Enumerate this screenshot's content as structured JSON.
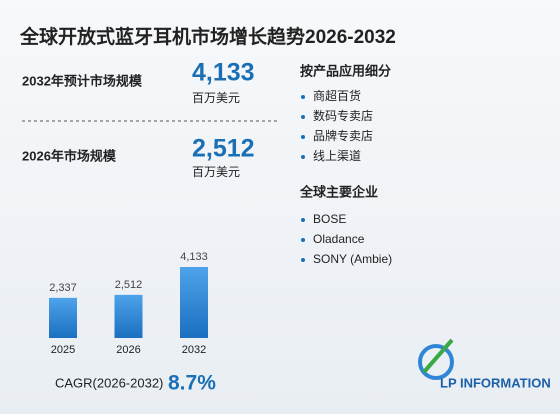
{
  "title": "全球开放式蓝牙耳机市场增长趋势2026-2032",
  "stats": [
    {
      "label": "2032年预计市场规模",
      "value": "4,133",
      "unit": "百万美元"
    },
    {
      "label": "2026年市场规模",
      "value": "2,512",
      "unit": "百万美元"
    }
  ],
  "chart_data": {
    "type": "bar",
    "categories": [
      "2025",
      "2026",
      "2032"
    ],
    "values": [
      2337,
      2512,
      4133
    ],
    "value_labels": [
      "2,337",
      "2,512",
      "4,133"
    ],
    "color": "#2f86d6"
  },
  "cagr": {
    "label": "CAGR(2026-2032)",
    "value": "8.7%"
  },
  "segments": {
    "title": "按产品应用细分",
    "items": [
      "商超百货",
      "数码专卖店",
      "品牌专卖店",
      "线上渠道"
    ]
  },
  "companies": {
    "title": "全球主要企业",
    "items": [
      "BOSE",
      "Oladance",
      "SONY (Ambie)"
    ]
  },
  "logo": "LP INFORMATION"
}
